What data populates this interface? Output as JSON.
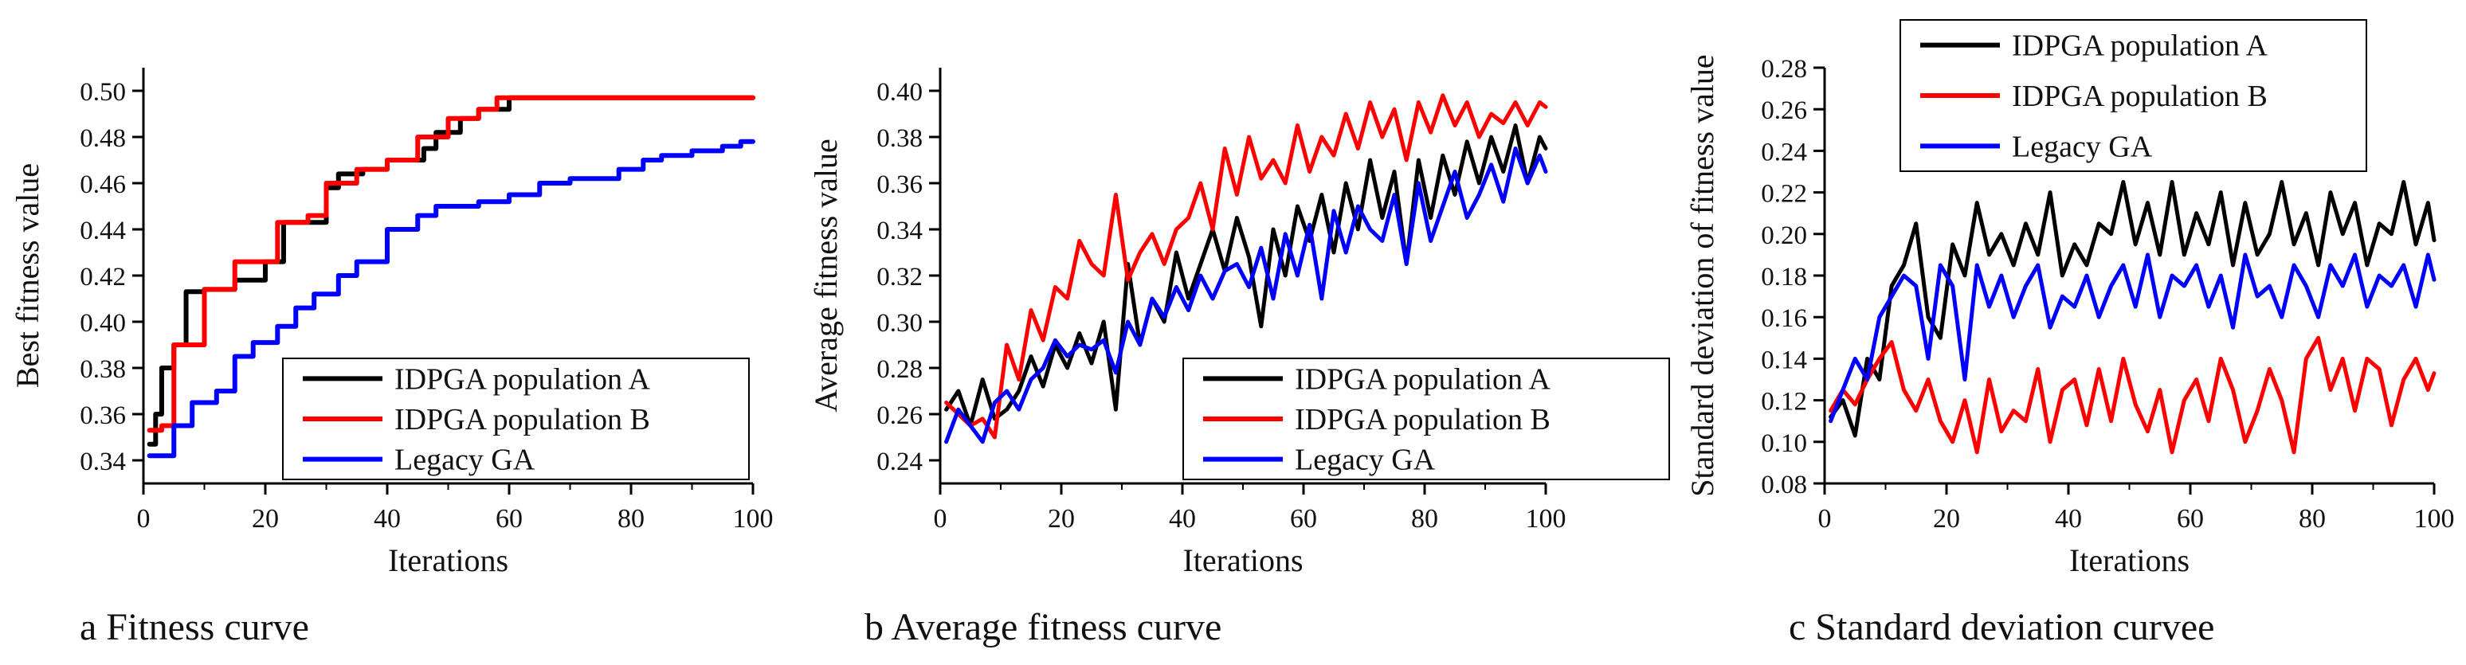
{
  "captions": {
    "a": "a Fitness curve",
    "b": "b Average fitness curve",
    "c": "c Standard deviation curvee"
  },
  "chart_data": [
    {
      "type": "line",
      "xlabel": "Iterations",
      "ylabel": "Best fitness value",
      "xlim": [
        0,
        100
      ],
      "ylim": [
        0.33,
        0.51
      ],
      "xticks": [
        0,
        20,
        40,
        60,
        80,
        100
      ],
      "yticks": [
        0.34,
        0.36,
        0.38,
        0.4,
        0.42,
        0.44,
        0.46,
        0.48,
        0.5
      ],
      "ytick_decimals": 2,
      "legend_position": "bottom-right",
      "series": [
        {
          "name": "IDPGA population A",
          "color": "#000000",
          "step": true,
          "x": [
            1,
            2,
            3,
            5,
            7,
            10,
            15,
            20,
            23,
            30,
            32,
            36,
            40,
            46,
            48,
            52,
            55,
            60,
            100
          ],
          "y": [
            0.347,
            0.36,
            0.38,
            0.39,
            0.413,
            0.414,
            0.418,
            0.426,
            0.443,
            0.458,
            0.464,
            0.466,
            0.47,
            0.475,
            0.482,
            0.488,
            0.492,
            0.497,
            0.497
          ]
        },
        {
          "name": "IDPGA population B",
          "color": "#ff0000",
          "step": true,
          "x": [
            1,
            3,
            5,
            8,
            10,
            15,
            20,
            22,
            27,
            30,
            35,
            40,
            45,
            50,
            55,
            58,
            100
          ],
          "y": [
            0.353,
            0.355,
            0.39,
            0.39,
            0.414,
            0.426,
            0.426,
            0.443,
            0.446,
            0.46,
            0.466,
            0.47,
            0.48,
            0.488,
            0.492,
            0.497,
            0.497
          ]
        },
        {
          "name": "Legacy GA",
          "color": "#0000ff",
          "step": true,
          "x": [
            1,
            5,
            8,
            12,
            15,
            18,
            22,
            25,
            28,
            32,
            35,
            40,
            45,
            48,
            55,
            60,
            65,
            70,
            78,
            82,
            85,
            90,
            95,
            98,
            100
          ],
          "y": [
            0.342,
            0.355,
            0.365,
            0.37,
            0.385,
            0.391,
            0.398,
            0.406,
            0.412,
            0.42,
            0.426,
            0.44,
            0.446,
            0.45,
            0.452,
            0.455,
            0.46,
            0.462,
            0.466,
            0.47,
            0.472,
            0.474,
            0.476,
            0.478,
            0.478
          ]
        }
      ]
    },
    {
      "type": "line",
      "xlabel": "Iterations",
      "ylabel": "Average fitness value",
      "xlim": [
        0,
        100
      ],
      "ylim": [
        0.23,
        0.41
      ],
      "xticks": [
        0,
        20,
        40,
        60,
        80,
        100
      ],
      "yticks": [
        0.24,
        0.26,
        0.28,
        0.3,
        0.32,
        0.34,
        0.36,
        0.38,
        0.4
      ],
      "ytick_decimals": 2,
      "legend_position": "bottom-right",
      "series": [
        {
          "name": "IDPGA population A",
          "color": "#000000",
          "x": [
            1,
            3,
            5,
            7,
            9,
            11,
            13,
            15,
            17,
            19,
            21,
            23,
            25,
            27,
            29,
            31,
            33,
            35,
            37,
            39,
            41,
            43,
            45,
            47,
            49,
            51,
            53,
            55,
            57,
            59,
            61,
            63,
            65,
            67,
            69,
            71,
            73,
            75,
            77,
            79,
            81,
            83,
            85,
            87,
            89,
            91,
            93,
            95,
            97,
            99,
            100
          ],
          "y": [
            0.262,
            0.27,
            0.255,
            0.275,
            0.258,
            0.262,
            0.27,
            0.285,
            0.272,
            0.29,
            0.28,
            0.295,
            0.282,
            0.3,
            0.262,
            0.325,
            0.29,
            0.31,
            0.3,
            0.33,
            0.31,
            0.325,
            0.34,
            0.322,
            0.345,
            0.328,
            0.298,
            0.34,
            0.32,
            0.35,
            0.335,
            0.355,
            0.33,
            0.36,
            0.34,
            0.37,
            0.345,
            0.365,
            0.325,
            0.37,
            0.345,
            0.372,
            0.355,
            0.378,
            0.36,
            0.38,
            0.365,
            0.385,
            0.36,
            0.38,
            0.375
          ]
        },
        {
          "name": "IDPGA population B",
          "color": "#ff0000",
          "x": [
            1,
            3,
            5,
            7,
            9,
            11,
            13,
            15,
            17,
            19,
            21,
            23,
            25,
            27,
            29,
            31,
            33,
            35,
            37,
            39,
            41,
            43,
            45,
            47,
            49,
            51,
            53,
            55,
            57,
            59,
            61,
            63,
            65,
            67,
            69,
            71,
            73,
            75,
            77,
            79,
            81,
            83,
            85,
            87,
            89,
            91,
            93,
            95,
            97,
            99,
            100
          ],
          "y": [
            0.265,
            0.26,
            0.255,
            0.258,
            0.25,
            0.29,
            0.275,
            0.305,
            0.292,
            0.315,
            0.31,
            0.335,
            0.325,
            0.32,
            0.355,
            0.318,
            0.33,
            0.338,
            0.325,
            0.34,
            0.345,
            0.36,
            0.34,
            0.375,
            0.355,
            0.38,
            0.362,
            0.37,
            0.36,
            0.385,
            0.365,
            0.38,
            0.372,
            0.39,
            0.375,
            0.395,
            0.38,
            0.392,
            0.37,
            0.395,
            0.382,
            0.398,
            0.385,
            0.395,
            0.38,
            0.39,
            0.386,
            0.395,
            0.385,
            0.395,
            0.393
          ]
        },
        {
          "name": "Legacy GA",
          "color": "#0000ff",
          "x": [
            1,
            3,
            5,
            7,
            9,
            11,
            13,
            15,
            17,
            19,
            21,
            23,
            25,
            27,
            29,
            31,
            33,
            35,
            37,
            39,
            41,
            43,
            45,
            47,
            49,
            51,
            53,
            55,
            57,
            59,
            61,
            63,
            65,
            67,
            69,
            71,
            73,
            75,
            77,
            79,
            81,
            83,
            85,
            87,
            89,
            91,
            93,
            95,
            97,
            99,
            100
          ],
          "y": [
            0.248,
            0.262,
            0.255,
            0.248,
            0.265,
            0.27,
            0.262,
            0.275,
            0.28,
            0.292,
            0.285,
            0.29,
            0.288,
            0.292,
            0.278,
            0.3,
            0.29,
            0.31,
            0.302,
            0.315,
            0.305,
            0.32,
            0.31,
            0.322,
            0.325,
            0.315,
            0.332,
            0.31,
            0.338,
            0.32,
            0.342,
            0.31,
            0.348,
            0.33,
            0.35,
            0.34,
            0.335,
            0.355,
            0.325,
            0.36,
            0.335,
            0.35,
            0.365,
            0.345,
            0.355,
            0.368,
            0.352,
            0.375,
            0.36,
            0.372,
            0.365
          ]
        }
      ]
    },
    {
      "type": "line",
      "xlabel": "Iterations",
      "ylabel": "Standard deviation of fitness value",
      "xlim": [
        0,
        100
      ],
      "ylim": [
        0.08,
        0.28
      ],
      "xticks": [
        0,
        20,
        40,
        60,
        80,
        100
      ],
      "yticks": [
        0.08,
        0.1,
        0.12,
        0.14,
        0.16,
        0.18,
        0.2,
        0.22,
        0.24,
        0.26,
        0.28
      ],
      "ytick_decimals": 2,
      "legend_position": "top-left",
      "series": [
        {
          "name": "IDPGA population A",
          "color": "#000000",
          "x": [
            1,
            3,
            5,
            7,
            9,
            11,
            13,
            15,
            17,
            19,
            21,
            23,
            25,
            27,
            29,
            31,
            33,
            35,
            37,
            39,
            41,
            43,
            45,
            47,
            49,
            51,
            53,
            55,
            57,
            59,
            61,
            63,
            65,
            67,
            69,
            71,
            73,
            75,
            77,
            79,
            81,
            83,
            85,
            87,
            89,
            91,
            93,
            95,
            97,
            99,
            100
          ],
          "y": [
            0.112,
            0.12,
            0.103,
            0.14,
            0.13,
            0.175,
            0.185,
            0.205,
            0.16,
            0.15,
            0.195,
            0.18,
            0.215,
            0.19,
            0.2,
            0.185,
            0.205,
            0.19,
            0.22,
            0.18,
            0.195,
            0.185,
            0.205,
            0.2,
            0.225,
            0.195,
            0.215,
            0.19,
            0.225,
            0.19,
            0.21,
            0.195,
            0.22,
            0.185,
            0.215,
            0.19,
            0.2,
            0.225,
            0.195,
            0.21,
            0.185,
            0.22,
            0.2,
            0.215,
            0.185,
            0.205,
            0.2,
            0.225,
            0.195,
            0.215,
            0.197
          ]
        },
        {
          "name": "IDPGA population B",
          "color": "#ff0000",
          "x": [
            1,
            3,
            5,
            7,
            9,
            11,
            13,
            15,
            17,
            19,
            21,
            23,
            25,
            27,
            29,
            31,
            33,
            35,
            37,
            39,
            41,
            43,
            45,
            47,
            49,
            51,
            53,
            55,
            57,
            59,
            61,
            63,
            65,
            67,
            69,
            71,
            73,
            75,
            77,
            79,
            81,
            83,
            85,
            87,
            89,
            91,
            93,
            95,
            97,
            99,
            100
          ],
          "y": [
            0.115,
            0.125,
            0.118,
            0.13,
            0.14,
            0.148,
            0.125,
            0.115,
            0.13,
            0.11,
            0.1,
            0.12,
            0.095,
            0.13,
            0.105,
            0.115,
            0.11,
            0.135,
            0.1,
            0.125,
            0.13,
            0.108,
            0.135,
            0.11,
            0.14,
            0.118,
            0.105,
            0.125,
            0.095,
            0.12,
            0.13,
            0.11,
            0.14,
            0.125,
            0.1,
            0.115,
            0.135,
            0.12,
            0.095,
            0.14,
            0.15,
            0.125,
            0.14,
            0.115,
            0.14,
            0.135,
            0.108,
            0.13,
            0.14,
            0.125,
            0.133
          ]
        },
        {
          "name": "Legacy GA",
          "color": "#0000ff",
          "x": [
            1,
            3,
            5,
            7,
            9,
            11,
            13,
            15,
            17,
            19,
            21,
            23,
            25,
            27,
            29,
            31,
            33,
            35,
            37,
            39,
            41,
            43,
            45,
            47,
            49,
            51,
            53,
            55,
            57,
            59,
            61,
            63,
            65,
            67,
            69,
            71,
            73,
            75,
            77,
            79,
            81,
            83,
            85,
            87,
            89,
            91,
            93,
            95,
            97,
            99,
            100
          ],
          "y": [
            0.11,
            0.125,
            0.14,
            0.13,
            0.16,
            0.17,
            0.18,
            0.175,
            0.14,
            0.185,
            0.175,
            0.13,
            0.185,
            0.165,
            0.18,
            0.16,
            0.175,
            0.185,
            0.155,
            0.17,
            0.165,
            0.18,
            0.16,
            0.175,
            0.185,
            0.165,
            0.19,
            0.16,
            0.18,
            0.175,
            0.185,
            0.165,
            0.18,
            0.155,
            0.19,
            0.17,
            0.175,
            0.16,
            0.185,
            0.175,
            0.16,
            0.185,
            0.175,
            0.19,
            0.165,
            0.18,
            0.175,
            0.185,
            0.165,
            0.19,
            0.178
          ]
        }
      ]
    }
  ]
}
